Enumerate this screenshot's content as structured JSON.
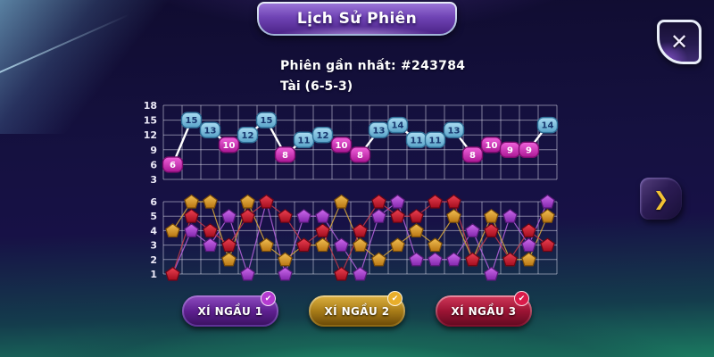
{
  "header": {
    "title": "Lịch Sử Phiên"
  },
  "session": {
    "latest_label": "Phiên gần nhất: #243784",
    "latest_result": "Tài (6-5-3)"
  },
  "controls": {
    "close_glyph": "✕",
    "next_glyph": "❯",
    "check_glyph": "✔"
  },
  "buttons": [
    {
      "label": "XÍ NGẦU 1",
      "color": "#7a35a8",
      "checked": true
    },
    {
      "label": "XÍ NGẦU 2",
      "color": "#b8891c",
      "checked": true
    },
    {
      "label": "XÍ NGẦU 3",
      "color": "#b01838",
      "checked": true
    }
  ],
  "colors": {
    "tai_light": "#aadcf2",
    "tai_dark": "#58a2c8",
    "tai_stroke": "#2e6e96",
    "tai_text": "#16366e",
    "xiu_light": "#f163dc",
    "xiu_dark": "#aa1694",
    "xiu_stroke": "#7c0e6e",
    "xiu_text": "#ffffff",
    "die1_light": "#cf6cee",
    "die1_dark": "#8327ad",
    "die1_stroke": "#581a78",
    "die1_line": "#b964e0",
    "die2_light": "#f3c054",
    "die2_dark": "#b97713",
    "die2_stroke": "#7c4e08",
    "die2_line": "#ddab3a",
    "die3_light": "#ee4152",
    "die3_dark": "#a30d1e",
    "die3_stroke": "#6b0614",
    "die3_line": "#c93848",
    "total_line": "#ffffff",
    "grid": "rgba(235,235,250,0.5)"
  },
  "chart_data": [
    {
      "type": "line",
      "title": "Session totals history (sum of 3 dice per round)",
      "x": [
        1,
        2,
        3,
        4,
        5,
        6,
        7,
        8,
        9,
        10,
        11,
        12,
        13,
        14,
        15,
        16,
        17,
        18,
        19,
        20,
        21
      ],
      "values": [
        6,
        15,
        13,
        10,
        12,
        15,
        8,
        11,
        12,
        10,
        8,
        13,
        14,
        11,
        11,
        13,
        8,
        10,
        9,
        9,
        14
      ],
      "point_rule": "value >= 11 is Tai (blue badge), value <= 10 is Xiu (pink badge)",
      "yticks": [
        18,
        15,
        12,
        9,
        6,
        3
      ],
      "ylim": [
        3,
        18
      ],
      "grid": true,
      "legend": "none"
    },
    {
      "type": "line",
      "title": "Individual dice history per round",
      "categories": [
        1,
        2,
        3,
        4,
        5,
        6,
        7,
        8,
        9,
        10,
        11,
        12,
        13,
        14,
        15,
        16,
        17,
        18,
        19,
        20,
        21
      ],
      "series": [
        {
          "name": "XÍ NGẦU 1",
          "marker": "pentagon",
          "color_key": "die1",
          "values": [
            1,
            4,
            3,
            5,
            1,
            6,
            1,
            5,
            5,
            3,
            1,
            5,
            6,
            2,
            2,
            2,
            4,
            1,
            5,
            3,
            6
          ]
        },
        {
          "name": "XÍ NGẦU 2",
          "marker": "pentagon",
          "color_key": "die2",
          "values": [
            4,
            6,
            6,
            2,
            6,
            3,
            2,
            3,
            3,
            6,
            3,
            2,
            3,
            4,
            3,
            5,
            2,
            5,
            2,
            2,
            5
          ]
        },
        {
          "name": "XÍ NGẦU 3",
          "marker": "pentagon",
          "color_key": "die3",
          "values": [
            1,
            5,
            4,
            3,
            5,
            6,
            5,
            3,
            4,
            1,
            4,
            6,
            5,
            5,
            6,
            6,
            2,
            4,
            2,
            4,
            3
          ]
        }
      ],
      "yticks": [
        6,
        5,
        4,
        3,
        2,
        1
      ],
      "ylim": [
        1,
        6
      ],
      "grid": true,
      "legend": "none"
    }
  ]
}
